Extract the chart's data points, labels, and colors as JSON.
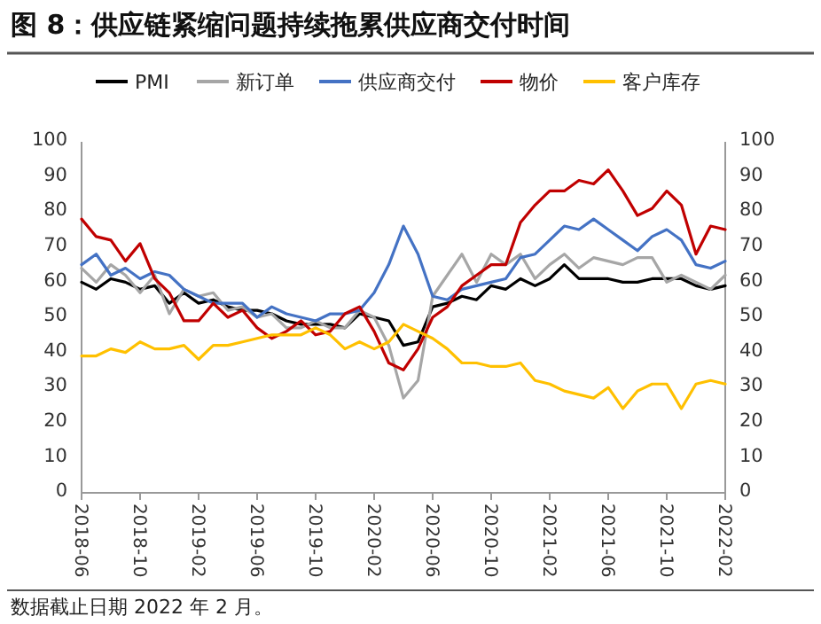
{
  "chart_data": {
    "type": "line",
    "title": "图 8：供应链紧缩问题持续拖累供应商交付时间",
    "categories": [
      "2018-06",
      null,
      null,
      null,
      "2018-10",
      null,
      null,
      null,
      "2019-02",
      null,
      null,
      null,
      "2019-06",
      null,
      null,
      null,
      "2019-10",
      null,
      null,
      null,
      "2020-02",
      null,
      null,
      null,
      "2020-06",
      null,
      null,
      null,
      "2020-10",
      null,
      null,
      null,
      "2021-02",
      null,
      null,
      null,
      "2021-06",
      null,
      null,
      null,
      "2021-10",
      null,
      null,
      null,
      "2022-02"
    ],
    "series": [
      {
        "name": "PMI",
        "color": "#000000",
        "values": [
          60,
          58,
          61,
          60,
          58,
          59,
          54,
          57,
          54,
          55,
          53,
          52,
          52,
          51,
          49,
          48,
          48,
          48,
          47,
          51,
          50,
          49,
          42,
          43,
          53,
          54,
          56,
          55,
          59,
          58,
          61,
          59,
          61,
          65,
          61,
          61,
          61,
          60,
          60,
          61,
          61,
          61,
          59,
          58,
          59
        ]
      },
      {
        "name": "新订单",
        "color": "#a6a6a6",
        "values": [
          64,
          60,
          65,
          62,
          57,
          62,
          51,
          58,
          56,
          57,
          52,
          53,
          50,
          51,
          47,
          47,
          49,
          47,
          47,
          52,
          50,
          42,
          27,
          32,
          56,
          62,
          68,
          60,
          68,
          65,
          68,
          61,
          65,
          68,
          64,
          67,
          66,
          65,
          67,
          67,
          60,
          62,
          60,
          58,
          62
        ]
      },
      {
        "name": "供应商交付",
        "color": "#4472c4",
        "values": [
          65,
          68,
          62,
          64,
          61,
          63,
          62,
          58,
          56,
          54,
          54,
          54,
          50,
          53,
          51,
          50,
          49,
          51,
          51,
          52,
          57,
          65,
          76,
          68,
          56,
          55,
          58,
          59,
          60,
          61,
          67,
          68,
          72,
          76,
          75,
          78,
          75,
          72,
          69,
          73,
          75,
          72,
          65,
          64,
          66
        ]
      },
      {
        "name": "物价",
        "color": "#c00000",
        "values": [
          78,
          73,
          72,
          66,
          71,
          61,
          57,
          49,
          49,
          54,
          50,
          52,
          47,
          44,
          46,
          49,
          45,
          46,
          51,
          53,
          46,
          37,
          35,
          41,
          50,
          53,
          59,
          62,
          65,
          65,
          77,
          82,
          86,
          86,
          89,
          88,
          92,
          86,
          79,
          81,
          86,
          82,
          68,
          76,
          75
        ]
      },
      {
        "name": "客户库存",
        "color": "#ffc000",
        "values": [
          39,
          39,
          41,
          40,
          43,
          41,
          41,
          42,
          38,
          42,
          42,
          43,
          44,
          45,
          45,
          45,
          47,
          45,
          41,
          43,
          41,
          43,
          48,
          46,
          44,
          41,
          37,
          37,
          36,
          36,
          37,
          32,
          31,
          29,
          28,
          27,
          30,
          24,
          29,
          31,
          31,
          24,
          31,
          32,
          31
        ]
      }
    ],
    "ylim": [
      0,
      100
    ],
    "yticks": [
      0,
      10,
      20,
      30,
      40,
      50,
      60,
      70,
      80,
      90,
      100
    ],
    "y2lim": [
      0,
      100
    ],
    "y2ticks": [
      0,
      10,
      20,
      30,
      40,
      50,
      60,
      70,
      80,
      90,
      100
    ],
    "grid": false,
    "legend": "top",
    "marker": "none",
    "line_style": "solid",
    "annotations": [
      "数据截止日期 2022 年 2 月。"
    ]
  }
}
